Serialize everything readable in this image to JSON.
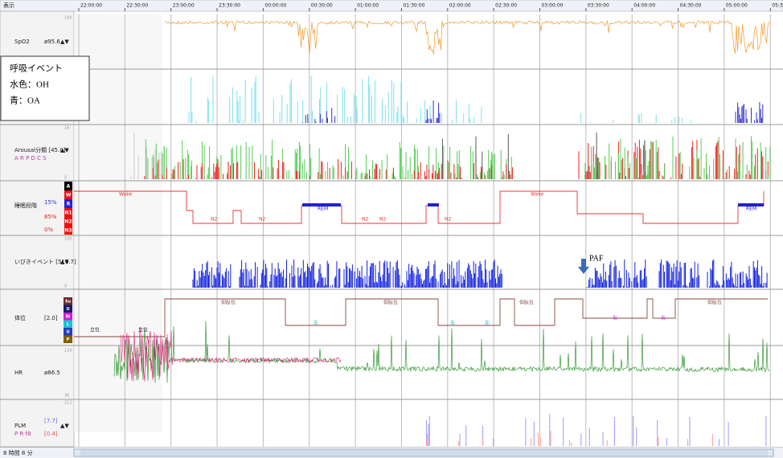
{
  "header": {
    "menu": "表示",
    "times": [
      "22:00:00",
      "22:30:00",
      "23:00:00",
      "23:30:00",
      "00:00:00",
      "00:30:00",
      "01:00:00",
      "01:30:00",
      "02:00:00",
      "02:30:00",
      "03:00:00",
      "03:30:00",
      "04:00:00",
      "04:30:00",
      "05:00:00",
      "05:30"
    ]
  },
  "tracks": {
    "spo2": {
      "label": "SpO2",
      "value": "ø95.6",
      "arrows": "▲▼",
      "top": "100"
    },
    "arousal": {
      "label": "Arousal分類 [45.0]",
      "arrows": "▲▼",
      "classes": "A R P D C S",
      "top": "16",
      "bottom": "0"
    },
    "stage": {
      "label": "睡眠段階",
      "pct1": "15%",
      "pct2": "85%",
      "pct3": "0%",
      "levels": [
        "A",
        "W",
        "R",
        "N1",
        "N2",
        "N3"
      ],
      "texts": {
        "wake1": "Wake",
        "wake2": "Wake",
        "n2a": "N2",
        "n2b": "N2",
        "n2c": "N2",
        "n2d": "N2",
        "n2e": "N2",
        "rem1": "REM",
        "rem2": "REM"
      }
    },
    "snore": {
      "label": "いびきイベント [516.7]",
      "arrows": "▲▼",
      "top": "100",
      "bottom": "0"
    },
    "position": {
      "label": "体位",
      "value": "[2.0]",
      "levels": [
        "Su",
        "U",
        "Ri",
        "L",
        "U",
        "P"
      ],
      "texts": {
        "standing1": "立位",
        "standing2": "立位",
        "left1": "左",
        "left2": "左",
        "left3": "左",
        "right1": "右",
        "right2": "右",
        "supine1": "仰臥位",
        "supine2": "仰臥位",
        "supine3": "仰臥位",
        "supine4": "仰臥位"
      }
    },
    "hr": {
      "label": "HR",
      "value": "ø86.5",
      "top": "120",
      "bottom": "30"
    },
    "plm": {
      "label": "PLM",
      "letters": "P R f8",
      "value1": "[7.7]",
      "value2": "[0.4]",
      "arrows": "▲▼",
      "top": "211"
    }
  },
  "legend_box": {
    "title": "呼吸イベント",
    "line1": "水色：OH",
    "line2": "青：OA"
  },
  "annotation": {
    "paf": "PAF"
  },
  "footer": {
    "duration": "8 時間 8 分"
  }
}
